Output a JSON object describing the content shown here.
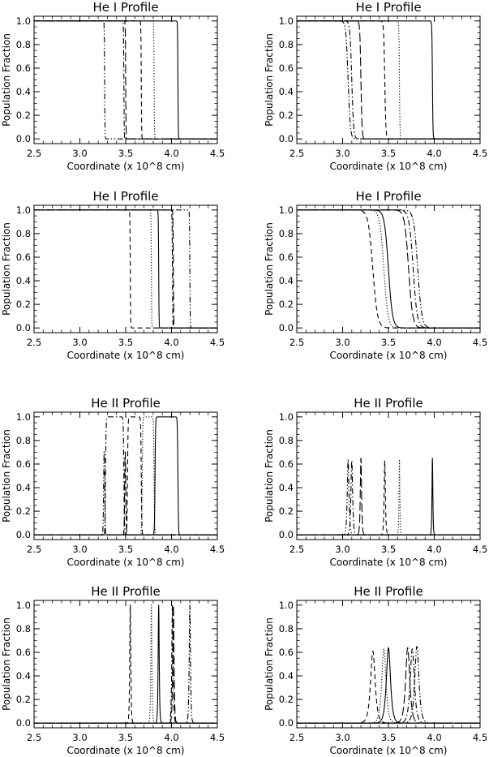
{
  "chart_data": [
    {
      "type": "line",
      "title": "He I Profile",
      "xlabel": "Coordinate (x 10^8 cm)",
      "ylabel": "Population Fraction",
      "xlim": [
        2.5,
        4.5
      ],
      "ylim": [
        0.0,
        1.0
      ],
      "xticks": [
        "2.5",
        "3.0",
        "3.5",
        "4.0",
        "4.5"
      ],
      "yticks": [
        "0.0",
        "0.2",
        "0.4",
        "0.6",
        "0.8",
        "1.0"
      ],
      "series": [
        {
          "style": "solid",
          "kind": "drop",
          "x0": 4.07,
          "w": 0.002
        },
        {
          "style": "dotted",
          "kind": "drop",
          "x0": 3.81,
          "w": 0.002
        },
        {
          "style": "dashed",
          "kind": "drop",
          "x0": 3.67,
          "w": 0.002
        },
        {
          "style": "longdash",
          "kind": "drop",
          "x0": 3.5,
          "w": 0.002
        },
        {
          "style": "dashdot",
          "kind": "drop",
          "x0": 3.48,
          "w": 0.002
        },
        {
          "style": "dashdotdot",
          "kind": "drop",
          "x0": 3.27,
          "w": 0.002
        }
      ]
    },
    {
      "type": "line",
      "title": "He I Profile",
      "xlabel": "Coordinate (x 10^8 cm)",
      "ylabel": "Population Fraction",
      "xlim": [
        2.5,
        4.5
      ],
      "ylim": [
        0.0,
        1.0
      ],
      "xticks": [
        "2.5",
        "3.0",
        "3.5",
        "4.0",
        "4.5"
      ],
      "yticks": [
        "0.0",
        "0.2",
        "0.4",
        "0.6",
        "0.8",
        "1.0"
      ],
      "series": [
        {
          "style": "solid",
          "kind": "drop",
          "x0": 3.98,
          "w": 0.003
        },
        {
          "style": "dotted",
          "kind": "drop",
          "x0": 3.62,
          "w": 0.003
        },
        {
          "style": "dashed",
          "kind": "drop",
          "x0": 3.46,
          "w": 0.006
        },
        {
          "style": "longdash",
          "kind": "drop",
          "x0": 3.2,
          "w": 0.006
        },
        {
          "style": "dashdot",
          "kind": "drop",
          "x0": 3.1,
          "w": 0.01
        },
        {
          "style": "dashdotdot",
          "kind": "drop",
          "x0": 3.06,
          "w": 0.012
        }
      ]
    },
    {
      "type": "line",
      "title": "He I Profile",
      "xlabel": "Coordinate (x 10^8 cm)",
      "ylabel": "Population Fraction",
      "xlim": [
        2.5,
        4.5
      ],
      "ylim": [
        0.0,
        1.0
      ],
      "xticks": [
        "2.5",
        "3.0",
        "3.5",
        "4.0",
        "4.5"
      ],
      "yticks": [
        "0.0",
        "0.2",
        "0.4",
        "0.6",
        "0.8",
        "1.0"
      ],
      "series": [
        {
          "style": "solid",
          "kind": "drop",
          "x0": 3.86,
          "w": 0.002
        },
        {
          "style": "dotted",
          "kind": "drop",
          "x0": 3.78,
          "w": 0.002
        },
        {
          "style": "dashed",
          "kind": "drop",
          "x0": 3.55,
          "w": 0.002
        },
        {
          "style": "longdash",
          "kind": "drop",
          "x0": 4.02,
          "w": 0.002
        },
        {
          "style": "dashdot",
          "kind": "drop",
          "x0": 4.01,
          "w": 0.002
        },
        {
          "style": "dashdotdot",
          "kind": "drop",
          "x0": 4.2,
          "w": 0.002
        }
      ]
    },
    {
      "type": "line",
      "title": "He I Profile",
      "xlabel": "Coordinate (x 10^8 cm)",
      "ylabel": "Population Fraction",
      "xlim": [
        2.5,
        4.5
      ],
      "ylim": [
        0.0,
        1.0
      ],
      "xticks": [
        "2.5",
        "3.0",
        "3.5",
        "4.0",
        "4.5"
      ],
      "yticks": [
        "0.0",
        "0.2",
        "0.4",
        "0.6",
        "0.8",
        "1.0"
      ],
      "series": [
        {
          "style": "solid",
          "kind": "drop",
          "x0": 3.5,
          "w": 0.022
        },
        {
          "style": "dotted",
          "kind": "drop",
          "x0": 3.45,
          "w": 0.022
        },
        {
          "style": "dashed",
          "kind": "drop",
          "x0": 3.33,
          "w": 0.025
        },
        {
          "style": "longdash",
          "kind": "drop",
          "x0": 3.72,
          "w": 0.022
        },
        {
          "style": "dashdot",
          "kind": "drop",
          "x0": 3.77,
          "w": 0.022
        },
        {
          "style": "dashdotdot",
          "kind": "drop",
          "x0": 3.82,
          "w": 0.022
        }
      ]
    },
    {
      "type": "line",
      "title": "He II Profile",
      "xlabel": "Coordinate (x 10^8 cm)",
      "ylabel": "Population Fraction",
      "xlim": [
        2.5,
        4.5
      ],
      "ylim": [
        0.0,
        1.0
      ],
      "xticks": [
        "2.5",
        "3.0",
        "3.5",
        "4.0",
        "4.5"
      ],
      "yticks": [
        "0.0",
        "0.2",
        "0.4",
        "0.6",
        "0.8",
        "1.0"
      ],
      "series": [
        {
          "style": "solid",
          "kind": "box",
          "a": 3.82,
          "b": 4.07,
          "w": 0.003,
          "peak": 1.0
        },
        {
          "style": "dotted",
          "kind": "box",
          "a": 3.68,
          "b": 3.81,
          "w": 0.003,
          "peak": 1.0
        },
        {
          "style": "dashed",
          "kind": "box",
          "a": 3.52,
          "b": 3.67,
          "w": 0.003,
          "peak": 1.0
        },
        {
          "style": "longdash",
          "kind": "box",
          "a": 3.49,
          "b": 3.5,
          "w": 0.003,
          "peak": 1.0
        },
        {
          "style": "dashdot",
          "kind": "box",
          "a": 3.28,
          "b": 3.48,
          "w": 0.003,
          "peak": 1.0
        },
        {
          "style": "dashdotdot",
          "kind": "box",
          "a": 3.26,
          "b": 3.27,
          "w": 0.003,
          "peak": 1.0
        }
      ]
    },
    {
      "type": "line",
      "title": "He II Profile",
      "xlabel": "Coordinate (x 10^8 cm)",
      "ylabel": "Population Fraction",
      "xlim": [
        2.5,
        4.5
      ],
      "ylim": [
        0.0,
        1.0
      ],
      "xticks": [
        "2.5",
        "3.0",
        "3.5",
        "4.0",
        "4.5"
      ],
      "yticks": [
        "0.0",
        "0.2",
        "0.4",
        "0.6",
        "0.8",
        "1.0"
      ],
      "series": [
        {
          "style": "solid",
          "kind": "peak",
          "x0": 3.98,
          "w": 0.004,
          "peak": 0.65
        },
        {
          "style": "dotted",
          "kind": "peak",
          "x0": 3.62,
          "w": 0.004,
          "peak": 0.64
        },
        {
          "style": "dashed",
          "kind": "peak",
          "x0": 3.46,
          "w": 0.006,
          "peak": 0.63
        },
        {
          "style": "longdash",
          "kind": "peak",
          "x0": 3.2,
          "w": 0.006,
          "peak": 0.65
        },
        {
          "style": "dashdot",
          "kind": "peak",
          "x0": 3.1,
          "w": 0.008,
          "peak": 0.63
        },
        {
          "style": "dashdotdot",
          "kind": "peak",
          "x0": 3.06,
          "w": 0.008,
          "peak": 0.64
        }
      ]
    },
    {
      "type": "line",
      "title": "He II Profile",
      "xlabel": "Coordinate (x 10^8 cm)",
      "ylabel": "Population Fraction",
      "xlim": [
        2.5,
        4.5
      ],
      "ylim": [
        0.0,
        1.0
      ],
      "xticks": [
        "2.5",
        "3.0",
        "3.5",
        "4.0",
        "4.5"
      ],
      "yticks": [
        "0.0",
        "0.2",
        "0.4",
        "0.6",
        "0.8",
        "1.0"
      ],
      "series": [
        {
          "style": "solid",
          "kind": "peak",
          "x0": 3.86,
          "w": 0.005,
          "peak": 1.0
        },
        {
          "style": "dotted",
          "kind": "peak",
          "x0": 3.78,
          "w": 0.005,
          "peak": 1.0
        },
        {
          "style": "dashed",
          "kind": "peak",
          "x0": 3.55,
          "w": 0.005,
          "peak": 1.0
        },
        {
          "style": "longdash",
          "kind": "peak",
          "x0": 4.02,
          "w": 0.006,
          "peak": 1.0
        },
        {
          "style": "dashdot",
          "kind": "peak",
          "x0": 4.01,
          "w": 0.006,
          "peak": 1.0
        },
        {
          "style": "dashdotdot",
          "kind": "peak",
          "x0": 4.2,
          "w": 0.006,
          "peak": 1.0
        }
      ]
    },
    {
      "type": "line",
      "title": "He II Profile",
      "xlabel": "Coordinate (x 10^8 cm)",
      "ylabel": "Population Fraction",
      "xlim": [
        2.5,
        4.5
      ],
      "ylim": [
        0.0,
        1.0
      ],
      "xticks": [
        "2.5",
        "3.0",
        "3.5",
        "4.0",
        "4.5"
      ],
      "yticks": [
        "0.0",
        "0.2",
        "0.4",
        "0.6",
        "0.8",
        "1.0"
      ],
      "series": [
        {
          "style": "solid",
          "kind": "peak",
          "x0": 3.5,
          "w": 0.02,
          "peak": 0.64
        },
        {
          "style": "dotted",
          "kind": "peak",
          "x0": 3.45,
          "w": 0.02,
          "peak": 0.63
        },
        {
          "style": "dashed",
          "kind": "peak",
          "x0": 3.33,
          "w": 0.022,
          "peak": 0.61
        },
        {
          "style": "longdash",
          "kind": "peak",
          "x0": 3.71,
          "w": 0.02,
          "peak": 0.64
        },
        {
          "style": "dashdot",
          "kind": "peak",
          "x0": 3.76,
          "w": 0.02,
          "peak": 0.63
        },
        {
          "style": "dashdotdot",
          "kind": "peak",
          "x0": 3.81,
          "w": 0.02,
          "peak": 0.65
        }
      ]
    }
  ]
}
